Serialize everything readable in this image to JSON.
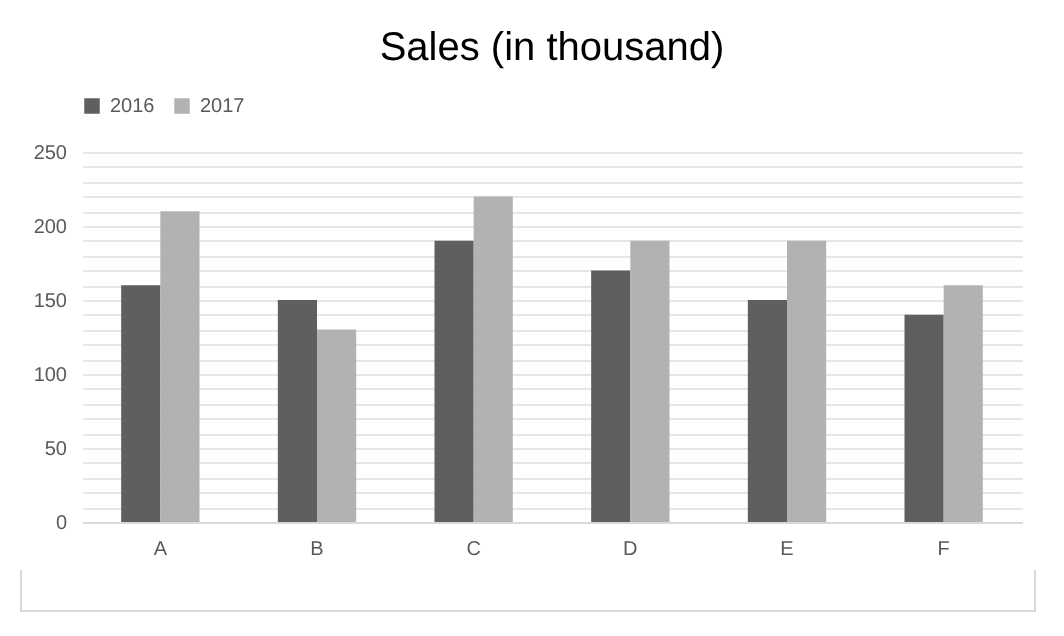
{
  "chart_data": {
    "type": "bar",
    "title": "Sales (in thousand)",
    "categories": [
      "A",
      "B",
      "C",
      "D",
      "E",
      "F"
    ],
    "series": [
      {
        "name": "2016",
        "color": "#5f5f5f",
        "values": [
          160,
          150,
          190,
          170,
          150,
          140
        ]
      },
      {
        "name": "2017",
        "color": "#b2b2b2",
        "values": [
          210,
          130,
          220,
          190,
          190,
          160
        ]
      }
    ],
    "ylim": [
      0,
      250
    ],
    "yticks": [
      0,
      {
        "value": 10,
        "label": null
      },
      {
        "value": 20,
        "label": null
      },
      {
        "value": 30,
        "label": null
      },
      {
        "value": 40,
        "label": null
      },
      50,
      {
        "value": 60,
        "label": null
      },
      {
        "value": 70,
        "label": null
      },
      {
        "value": 80,
        "label": null
      },
      {
        "value": 90,
        "label": null
      },
      100,
      {
        "value": 110,
        "label": null
      },
      {
        "value": 120,
        "label": null
      },
      {
        "value": 130,
        "label": null
      },
      {
        "value": 140,
        "label": null
      },
      150,
      {
        "value": 160,
        "label": null
      },
      {
        "value": 170,
        "label": null
      },
      {
        "value": 180,
        "label": null
      },
      {
        "value": 190,
        "label": null
      },
      200,
      {
        "value": 210,
        "label": null
      },
      {
        "value": 220,
        "label": null
      },
      {
        "value": 230,
        "label": null
      },
      {
        "value": 240,
        "label": null
      },
      250
    ],
    "grid": "y",
    "legend": "top"
  }
}
